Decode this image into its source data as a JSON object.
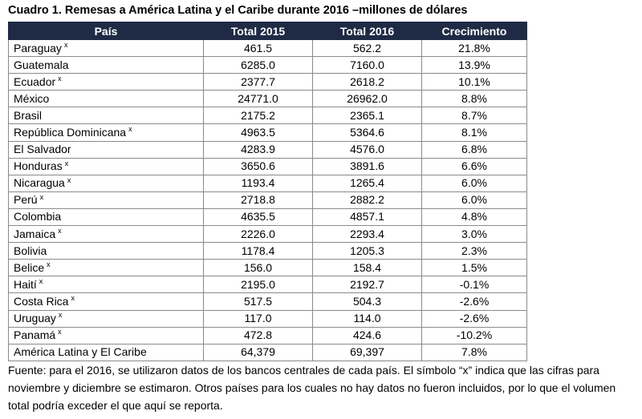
{
  "title": "Cuadro 1. Remesas a América Latina y el Caribe durante 2016 –millones de dólares",
  "table": {
    "headers": [
      "País",
      "Total 2015",
      "Total 2016",
      "Crecimiento"
    ],
    "rows": [
      {
        "country": "Paraguay",
        "mark": "x",
        "total_2015": "461.5",
        "total_2016": "562.2",
        "growth": "21.8%"
      },
      {
        "country": "Guatemala",
        "mark": "",
        "total_2015": "6285.0",
        "total_2016": "7160.0",
        "growth": "13.9%"
      },
      {
        "country": "Ecuador",
        "mark": "x",
        "total_2015": "2377.7",
        "total_2016": "2618.2",
        "growth": "10.1%"
      },
      {
        "country": "México",
        "mark": "",
        "total_2015": "24771.0",
        "total_2016": "26962.0",
        "growth": "8.8%"
      },
      {
        "country": "Brasil",
        "mark": "",
        "total_2015": "2175.2",
        "total_2016": "2365.1",
        "growth": "8.7%"
      },
      {
        "country": "República Dominicana",
        "mark": "x",
        "total_2015": "4963.5",
        "total_2016": "5364.6",
        "growth": "8.1%"
      },
      {
        "country": "El Salvador",
        "mark": "",
        "total_2015": "4283.9",
        "total_2016": "4576.0",
        "growth": "6.8%"
      },
      {
        "country": "Honduras",
        "mark": "x",
        "total_2015": "3650.6",
        "total_2016": "3891.6",
        "growth": "6.6%"
      },
      {
        "country": "Nicaragua",
        "mark": "x",
        "total_2015": "1193.4",
        "total_2016": "1265.4",
        "growth": "6.0%"
      },
      {
        "country": "Perú",
        "mark": "x",
        "total_2015": "2718.8",
        "total_2016": "2882.2",
        "growth": "6.0%"
      },
      {
        "country": "Colombia",
        "mark": "",
        "total_2015": "4635.5",
        "total_2016": "4857.1",
        "growth": "4.8%"
      },
      {
        "country": "Jamaica",
        "mark": "x",
        "total_2015": "2226.0",
        "total_2016": "2293.4",
        "growth": "3.0%"
      },
      {
        "country": "Bolivia",
        "mark": "",
        "total_2015": "1178.4",
        "total_2016": "1205.3",
        "growth": "2.3%"
      },
      {
        "country": "Belice",
        "mark": "x",
        "total_2015": "156.0",
        "total_2016": "158.4",
        "growth": "1.5%"
      },
      {
        "country": "Haití",
        "mark": "x",
        "total_2015": "2195.0",
        "total_2016": "2192.7",
        "growth": "-0.1%"
      },
      {
        "country": "Costa Rica",
        "mark": "x",
        "total_2015": "517.5",
        "total_2016": "504.3",
        "growth": "-2.6%"
      },
      {
        "country": "Uruguay",
        "mark": "x",
        "total_2015": "117.0",
        "total_2016": "114.0",
        "growth": "-2.6%"
      },
      {
        "country": "Panamá",
        "mark": "x",
        "total_2015": "472.8",
        "total_2016": "424.6",
        "growth": "-10.2%"
      },
      {
        "country": "América Latina y El Caribe",
        "mark": "",
        "total_2015": "64,379",
        "total_2016": "69,397",
        "growth": "7.8%"
      }
    ]
  },
  "footnote": "Fuente: para el 2016, se utilizaron datos de los bancos centrales de cada país. El símbolo “x” indica que las cifras para noviembre y diciembre se estimaron. Otros países para los cuales no hay datos no fueron incluidos, por lo que el volumen total podría exceder el que aquí se reporta.",
  "colors": {
    "header_background": "#1f2a44",
    "header_text": "#ffffff",
    "grid": "#8a8a8a"
  }
}
